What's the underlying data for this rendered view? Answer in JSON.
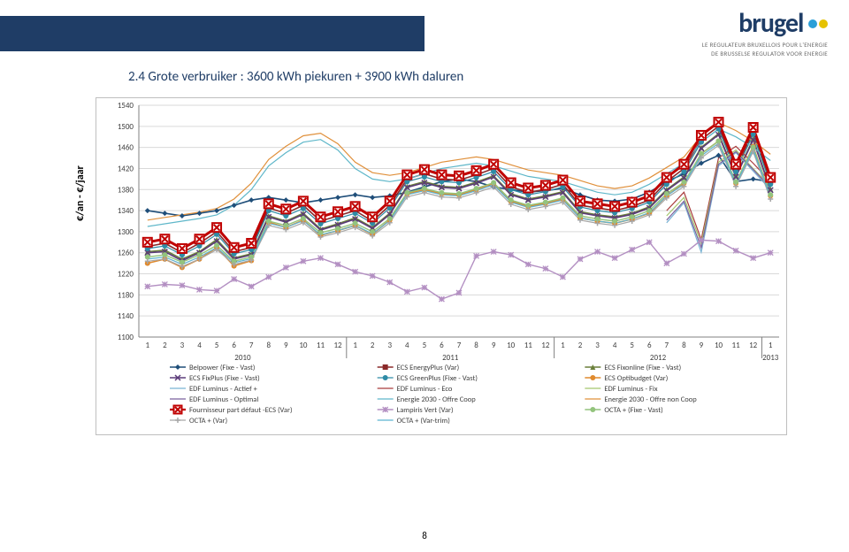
{
  "header": {
    "logo_text": "brugel",
    "dot_colors": [
      "#2b9fd8",
      "#e6c200"
    ],
    "sub_line1": "LE REGULATEUR BRUXELLOIS POUR L'ENERGIE",
    "sub_line2": "DE BRUSSELSE REGULATOR VOOR ENERGIE"
  },
  "title": "2.4 Grote verbruiker : 3600 kWh piekuren  + 3900 kWh daluren",
  "page_number": "8",
  "chart": {
    "type": "line",
    "ylabel": "€/an - €/jaar",
    "ylim": [
      1100,
      1540
    ],
    "ytick_step": 40,
    "label_fontsize": 10,
    "tick_fontsize": 9,
    "background_color": "#ffffff",
    "grid_color": "#d9d9d9",
    "border_color": "#bfbfbf",
    "x_months": [
      "1",
      "2",
      "3",
      "4",
      "5",
      "6",
      "7",
      "8",
      "9",
      "10",
      "11",
      "12",
      "1",
      "2",
      "3",
      "4",
      "5",
      "6",
      "7",
      "8",
      "9",
      "10",
      "11",
      "12",
      "1",
      "2",
      "3",
      "4",
      "5",
      "6",
      "7",
      "8",
      "9",
      "10",
      "11",
      "12",
      "1"
    ],
    "x_years": [
      "2010",
      "2011",
      "2012",
      "2013"
    ],
    "series": [
      {
        "name": "Belpower  (Fixe - Vast)",
        "color": "#1f4e79",
        "marker": "diamond",
        "width": 1.6,
        "values": [
          1340,
          1335,
          1330,
          1335,
          1340,
          1350,
          1360,
          1365,
          1360,
          1355,
          1360,
          1365,
          1370,
          1365,
          1368,
          1375,
          1385,
          1395,
          1400,
          1395,
          1385,
          1380,
          1375,
          1378,
          1382,
          1370,
          1360,
          1358,
          1362,
          1375,
          1395,
          1410,
          1430,
          1445,
          1395,
          1400,
          1395
        ]
      },
      {
        "name": "ECS EnergyPlus (Var)",
        "color": "#8b2a2a",
        "marker": "square",
        "width": 1.6,
        "values": [
          1272,
          1278,
          1260,
          1278,
          1300,
          1262,
          1270,
          1345,
          1335,
          1350,
          1320,
          1330,
          1340,
          1320,
          1350,
          1400,
          1410,
          1400,
          1398,
          1408,
          1420,
          1385,
          1375,
          1380,
          1390,
          1350,
          1345,
          1340,
          1348,
          1360,
          1395,
          1420,
          1475,
          1500,
          1420,
          1490,
          1395
        ]
      },
      {
        "name": "ECS Fixonline (Fixe - Vast)",
        "color": "#6a7f3a",
        "marker": "triangle",
        "width": 1.6,
        "values": [
          1262,
          1265,
          1248,
          1262,
          1285,
          1250,
          1258,
          1330,
          1320,
          1335,
          1305,
          1315,
          1326,
          1308,
          1335,
          1386,
          1395,
          1386,
          1384,
          1394,
          1406,
          1372,
          1362,
          1368,
          1376,
          1338,
          1332,
          1328,
          1335,
          1347,
          1380,
          1404,
          1460,
          1486,
          1406,
          1476,
          1381
        ]
      },
      {
        "name": "ECS FixPlus (Fixe - Vast)",
        "color": "#5b3b7a",
        "marker": "x",
        "width": 1.6,
        "values": [
          1260,
          1262,
          1245,
          1260,
          1282,
          1248,
          1256,
          1328,
          1318,
          1333,
          1303,
          1313,
          1324,
          1306,
          1333,
          1384,
          1393,
          1384,
          1382,
          1392,
          1404,
          1370,
          1360,
          1366,
          1374,
          1336,
          1330,
          1326,
          1333,
          1345,
          1378,
          1402,
          1458,
          1484,
          1404,
          1474,
          1379
        ]
      },
      {
        "name": "ECS GreenPlus (Fixe - Vast)",
        "color": "#2e8ba6",
        "marker": "o",
        "width": 1.2,
        "values": [
          1268,
          1273,
          1256,
          1273,
          1295,
          1258,
          1266,
          1340,
          1330,
          1344,
          1315,
          1325,
          1335,
          1316,
          1345,
          1395,
          1404,
          1395,
          1393,
          1403,
          1414,
          1380,
          1370,
          1376,
          1385,
          1347,
          1340,
          1336,
          1344,
          1356,
          1390,
          1414,
          1470,
          1495,
          1414,
          1485,
          1390
        ]
      },
      {
        "name": "ECS Optibudget (Var)",
        "color": "#e08a2e",
        "marker": "o",
        "width": 1.6,
        "values": [
          1240,
          1248,
          1232,
          1248,
          1270,
          1235,
          1245,
          1318,
          1308,
          1322,
          1293,
          1302,
          1312,
          1295,
          1322,
          1372,
          1380,
          1372,
          1370,
          1380,
          1392,
          1358,
          1348,
          1354,
          1362,
          1326,
          1320,
          1316,
          1324,
          1335,
          1368,
          1392,
          1448,
          1472,
          1392,
          1462,
          1368
        ]
      },
      {
        "name": "EDF Luminus - Actief +",
        "color": "#79b3d4",
        "marker": null,
        "width": 1.2,
        "values": [
          null,
          null,
          null,
          null,
          null,
          null,
          null,
          null,
          null,
          null,
          null,
          null,
          null,
          null,
          null,
          null,
          null,
          null,
          null,
          null,
          null,
          null,
          null,
          null,
          null,
          null,
          null,
          null,
          null,
          null,
          1317,
          1355,
          1261,
          1425,
          1450,
          1415,
          1380
        ]
      },
      {
        "name": "EDF Luminus - Eco",
        "color": "#a93c3c",
        "marker": null,
        "width": 1.2,
        "values": [
          null,
          null,
          null,
          null,
          null,
          null,
          null,
          null,
          null,
          null,
          null,
          null,
          null,
          null,
          null,
          null,
          null,
          null,
          null,
          null,
          null,
          null,
          null,
          null,
          null,
          null,
          null,
          null,
          null,
          null,
          1340,
          1375,
          1285,
          1440,
          1462,
          1430,
          1395
        ]
      },
      {
        "name": "EDF Luminus - Fix",
        "color": "#a5c76e",
        "marker": null,
        "width": 1.2,
        "values": [
          null,
          null,
          null,
          null,
          null,
          null,
          null,
          null,
          null,
          null,
          null,
          null,
          null,
          null,
          null,
          null,
          null,
          null,
          null,
          null,
          null,
          null,
          null,
          null,
          null,
          null,
          null,
          null,
          null,
          null,
          1330,
          1365,
          1278,
          1432,
          1455,
          1420,
          1386
        ]
      },
      {
        "name": "EDF Luminus - Optimal",
        "color": "#7a619e",
        "marker": null,
        "width": 1.2,
        "values": [
          null,
          null,
          null,
          null,
          null,
          null,
          null,
          null,
          null,
          null,
          null,
          null,
          null,
          null,
          null,
          null,
          null,
          null,
          null,
          null,
          null,
          null,
          null,
          null,
          null,
          null,
          null,
          null,
          null,
          null,
          1322,
          1358,
          1270,
          1428,
          1452,
          1418,
          1383
        ]
      },
      {
        "name": "Energie 2030 - Offre Coop",
        "color": "#5fb7c9",
        "marker": null,
        "width": 1.2,
        "values": [
          1310,
          1315,
          1320,
          1325,
          1332,
          1350,
          1380,
          1425,
          1450,
          1470,
          1475,
          1455,
          1420,
          1400,
          1395,
          1400,
          1410,
          1420,
          1425,
          1430,
          1425,
          1415,
          1405,
          1400,
          1395,
          1385,
          1375,
          1370,
          1375,
          1390,
          1410,
          1430,
          1470,
          1495,
          1480,
          1460,
          1435
        ]
      },
      {
        "name": "Energie 2030 - Offre non Coop",
        "color": "#e0903b",
        "marker": null,
        "width": 1.2,
        "values": [
          1322,
          1327,
          1332,
          1337,
          1344,
          1362,
          1392,
          1437,
          1462,
          1482,
          1487,
          1467,
          1432,
          1412,
          1407,
          1412,
          1422,
          1432,
          1437,
          1442,
          1437,
          1427,
          1417,
          1412,
          1407,
          1397,
          1387,
          1382,
          1387,
          1402,
          1422,
          1442,
          1482,
          1507,
          1492,
          1472,
          1447
        ]
      },
      {
        "name": "Fournisseur part défaut -ECS (Var)",
        "color": "#c00000",
        "marker": "x-boxed",
        "width": 3.0,
        "values": [
          1280,
          1286,
          1268,
          1286,
          1308,
          1270,
          1278,
          1353,
          1343,
          1358,
          1328,
          1338,
          1348,
          1328,
          1358,
          1408,
          1418,
          1408,
          1406,
          1416,
          1428,
          1393,
          1383,
          1388,
          1398,
          1358,
          1353,
          1348,
          1356,
          1368,
          1403,
          1428,
          1483,
          1508,
          1428,
          1498,
          1403
        ]
      },
      {
        "name": "Lampiris Vert (Var)",
        "color": "#b38fc2",
        "marker": "asterisk",
        "width": 1.4,
        "values": [
          1196,
          1200,
          1198,
          1190,
          1188,
          1210,
          1196,
          1214,
          1232,
          1244,
          1250,
          1238,
          1224,
          1216,
          1204,
          1186,
          1194,
          1172,
          1184,
          1254,
          1262,
          1256,
          1238,
          1230,
          1214,
          1248,
          1262,
          1250,
          1266,
          1280,
          1240,
          1258,
          1284,
          1282,
          1264,
          1250,
          1260
        ]
      },
      {
        "name": "OCTA +  (Fixe - Vast)",
        "color": "#93c47d",
        "marker": "o",
        "width": 1.4,
        "values": [
          1252,
          1256,
          1242,
          1256,
          1274,
          1244,
          1252,
          1320,
          1312,
          1325,
          1298,
          1306,
          1316,
          1300,
          1325,
          1374,
          1382,
          1374,
          1372,
          1382,
          1393,
          1360,
          1350,
          1356,
          1364,
          1330,
          1324,
          1320,
          1328,
          1340,
          1372,
          1394,
          1448,
          1472,
          1394,
          1460,
          1370
        ]
      },
      {
        "name": "OCTA +  (Var)",
        "color": "#a6a6a6",
        "marker": "plus",
        "width": 1.2,
        "values": [
          1244,
          1248,
          1234,
          1248,
          1266,
          1238,
          1246,
          1312,
          1304,
          1317,
          1290,
          1298,
          1308,
          1292,
          1317,
          1366,
          1374,
          1366,
          1364,
          1374,
          1385,
          1352,
          1342,
          1348,
          1356,
          1322,
          1316,
          1312,
          1320,
          1332,
          1364,
          1386,
          1440,
          1464,
          1386,
          1452,
          1362
        ]
      },
      {
        "name": "OCTA +  (Var-trim)",
        "color": "#5cb3d1",
        "marker": null,
        "width": 1.2,
        "values": [
          1248,
          1252,
          1238,
          1252,
          1270,
          1241,
          1249,
          1316,
          1308,
          1321,
          1294,
          1302,
          1312,
          1296,
          1321,
          1370,
          1378,
          1370,
          1368,
          1378,
          1389,
          1356,
          1346,
          1352,
          1360,
          1326,
          1320,
          1316,
          1324,
          1336,
          1368,
          1390,
          1444,
          1468,
          1390,
          1456,
          1366
        ]
      }
    ],
    "legend_marker_size": 7
  }
}
